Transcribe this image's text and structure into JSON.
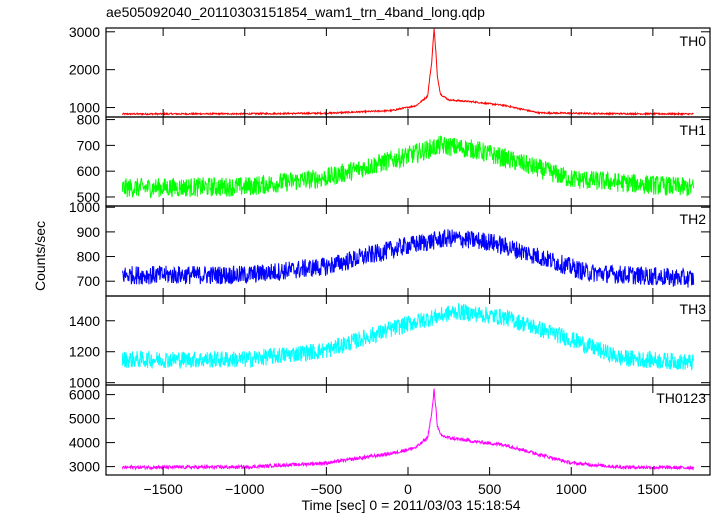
{
  "title": "ae505092040_20110303151854_wam1_trn_4band_long.qdp",
  "ylabel": "Counts/sec",
  "xlabel": "Time [sec] 0 = 2011/03/03 15:18:54",
  "x_ticks": [
    -1500,
    -1000,
    -500,
    0,
    500,
    1000,
    1500
  ],
  "chart_data": [
    {
      "type": "line",
      "panel_label": "TH0",
      "color": "#ff0000",
      "xlim": [
        -1850,
        1850
      ],
      "ylim": [
        750,
        3100
      ],
      "yticks": [
        1000,
        2000,
        3000
      ],
      "x_range": [
        -1750,
        1750
      ],
      "profile_x": [
        -1750,
        -1000,
        -500,
        -100,
        50,
        120,
        145,
        160,
        170,
        180,
        200,
        250,
        400,
        600,
        650,
        800,
        1200,
        1750
      ],
      "profile_y": [
        830,
        835,
        850,
        920,
        1050,
        1300,
        2200,
        3100,
        2500,
        1800,
        1350,
        1200,
        1150,
        1050,
        1000,
        860,
        840,
        830
      ],
      "noise_amplitude": 20
    },
    {
      "type": "line",
      "panel_label": "TH1",
      "color": "#00ff00",
      "xlim": [
        -1850,
        1850
      ],
      "ylim": [
        465,
        810
      ],
      "yticks": [
        500,
        600,
        700,
        800
      ],
      "x_range": [
        -1750,
        1750
      ],
      "profile_x": [
        -1750,
        -1000,
        -500,
        0,
        200,
        400,
        700,
        1000,
        1750
      ],
      "profile_y": [
        535,
        540,
        575,
        660,
        700,
        685,
        630,
        570,
        535
      ],
      "noise_amplitude": 38
    },
    {
      "type": "line",
      "panel_label": "TH2",
      "color": "#0000ff",
      "xlim": [
        -1850,
        1850
      ],
      "ylim": [
        640,
        1005
      ],
      "yticks": [
        700,
        800,
        900,
        1000
      ],
      "x_range": [
        -1750,
        1750
      ],
      "profile_x": [
        -1750,
        -1000,
        -500,
        0,
        250,
        500,
        800,
        1100,
        1750
      ],
      "profile_y": [
        725,
        725,
        760,
        845,
        875,
        860,
        800,
        735,
        710
      ],
      "noise_amplitude": 38
    },
    {
      "type": "line",
      "panel_label": "TH3",
      "color": "#00ffff",
      "xlim": [
        -1850,
        1850
      ],
      "ylim": [
        985,
        1560
      ],
      "yticks": [
        1000,
        1200,
        1400
      ],
      "x_range": [
        -1750,
        1750
      ],
      "profile_x": [
        -1750,
        -1000,
        -500,
        0,
        300,
        600,
        1000,
        1300,
        1750
      ],
      "profile_y": [
        1150,
        1150,
        1210,
        1380,
        1460,
        1420,
        1280,
        1160,
        1130
      ],
      "noise_amplitude": 55
    },
    {
      "type": "line",
      "panel_label": "TH0123",
      "color": "#ff00ff",
      "xlim": [
        -1850,
        1850
      ],
      "ylim": [
        2650,
        6400
      ],
      "yticks": [
        3000,
        4000,
        5000,
        6000
      ],
      "x_range": [
        -1750,
        1750
      ],
      "profile_x": [
        -1750,
        -1000,
        -500,
        -100,
        50,
        120,
        145,
        160,
        170,
        180,
        200,
        250,
        400,
        600,
        700,
        1000,
        1300,
        1750
      ],
      "profile_y": [
        2970,
        2980,
        3150,
        3550,
        3800,
        4200,
        5200,
        6200,
        5500,
        4700,
        4300,
        4200,
        4050,
        3900,
        3700,
        3150,
        2980,
        2950
      ],
      "noise_amplitude": 70
    }
  ]
}
